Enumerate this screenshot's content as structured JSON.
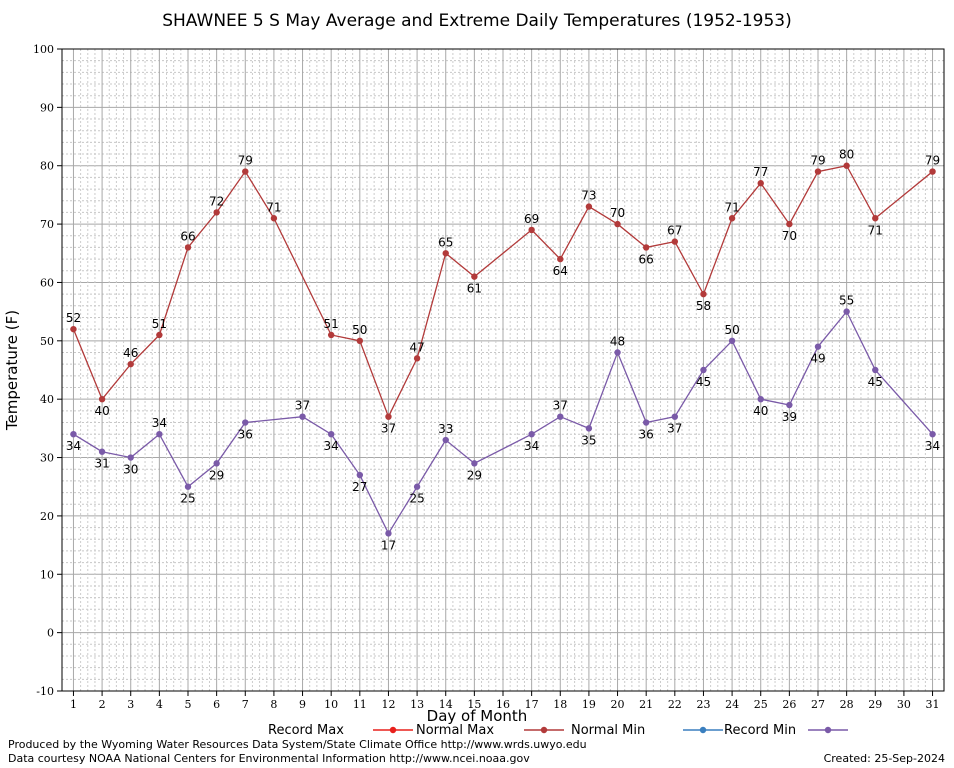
{
  "chart_data": {
    "type": "line",
    "title": "SHAWNEE 5 S May Average and Extreme Daily Temperatures (1952-1953)",
    "xlabel": "Day of Month",
    "ylabel": "Temperature (F)",
    "xlim": [
      0.6,
      31.4
    ],
    "ylim": [
      -10,
      100
    ],
    "grid": true,
    "x_ticks": [
      "1",
      "2",
      "3",
      "4",
      "5",
      "6",
      "7",
      "8",
      "9",
      "10",
      "11",
      "12",
      "13",
      "14",
      "15",
      "16",
      "17",
      "18",
      "19",
      "20",
      "21",
      "22",
      "23",
      "24",
      "25",
      "26",
      "27",
      "28",
      "29",
      "30",
      "31"
    ],
    "y_ticks": [
      "100",
      "90",
      "80",
      "70",
      "60",
      "50",
      "40",
      "30",
      "20",
      "10",
      "0",
      "-10"
    ],
    "legend_position": "bottom",
    "series": [
      {
        "name": "Record Max",
        "color": "#e8201c",
        "points": []
      },
      {
        "name": "Normal Max",
        "color": "#b23a3a",
        "points": [
          [
            1,
            52
          ],
          [
            2,
            40
          ],
          [
            3,
            46
          ],
          [
            4,
            51
          ],
          [
            5,
            66
          ],
          [
            6,
            72
          ],
          [
            7,
            79
          ],
          [
            8,
            71
          ],
          [
            10,
            51
          ],
          [
            11,
            50
          ],
          [
            12,
            37
          ],
          [
            13,
            47
          ],
          [
            14,
            65
          ],
          [
            15,
            61
          ],
          [
            17,
            69
          ],
          [
            18,
            64
          ],
          [
            19,
            73
          ],
          [
            20,
            70
          ],
          [
            21,
            66
          ],
          [
            22,
            67
          ],
          [
            23,
            58
          ],
          [
            24,
            71
          ],
          [
            25,
            77
          ],
          [
            26,
            70
          ],
          [
            27,
            79
          ],
          [
            28,
            80
          ],
          [
            29,
            71
          ],
          [
            31,
            79
          ]
        ]
      },
      {
        "name": "Normal Min",
        "color": "#3a7fbf",
        "points": []
      },
      {
        "name": "Record Min",
        "color": "#7a5aa8",
        "points": [
          [
            1,
            34
          ],
          [
            2,
            31
          ],
          [
            3,
            30
          ],
          [
            4,
            34
          ],
          [
            5,
            25
          ],
          [
            6,
            29
          ],
          [
            7,
            36
          ],
          [
            9,
            37
          ],
          [
            10,
            34
          ],
          [
            11,
            27
          ],
          [
            12,
            17
          ],
          [
            13,
            25
          ],
          [
            14,
            33
          ],
          [
            15,
            29
          ],
          [
            17,
            34
          ],
          [
            18,
            37
          ],
          [
            19,
            35
          ],
          [
            20,
            48
          ],
          [
            21,
            36
          ],
          [
            22,
            37
          ],
          [
            23,
            45
          ],
          [
            24,
            50
          ],
          [
            25,
            40
          ],
          [
            26,
            39
          ],
          [
            27,
            49
          ],
          [
            28,
            55
          ],
          [
            29,
            45
          ],
          [
            31,
            34
          ]
        ]
      }
    ]
  },
  "footer": {
    "left1": "Produced by the Wyoming Water Resources Data System/State Climate Office http://www.wrds.uwyo.edu",
    "left2": "Data courtesy NOAA National Centers for Environmental Information http://www.ncei.noaa.gov",
    "right": "Created:  25-Sep-2024"
  }
}
